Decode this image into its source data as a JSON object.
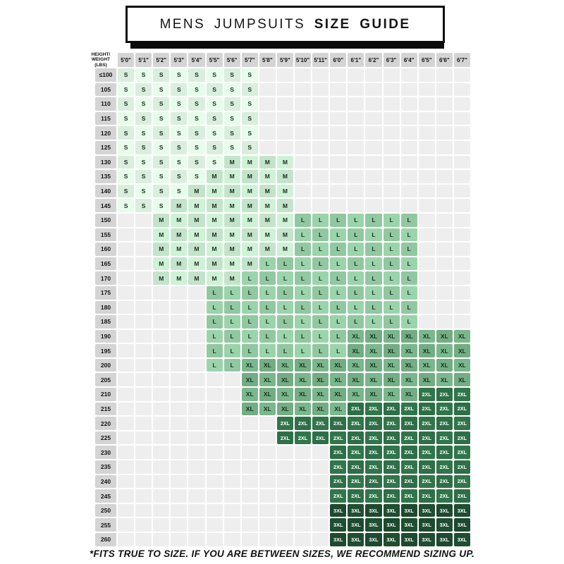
{
  "title": {
    "prefix": "MENS JUMPSUITS",
    "emphasis": "SIZE GUIDE"
  },
  "footer_note": "*FITS TRUE TO SIZE. IF YOU ARE BETWEEN SIZES, WE RECOMMEND SIZING UP.",
  "colors": {
    "label_bg": "#d4d4d4",
    "empty_bg": "#eeeeee",
    "title_border": "#0b0b0b",
    "sizes": {
      "S": {
        "bg": "#daeedd",
        "fg": "#1c2a20"
      },
      "M": {
        "bg": "#c3e4cb",
        "fg": "#1c2a20"
      },
      "L": {
        "bg": "#92c8a1",
        "fg": "#14301f"
      },
      "XL": {
        "bg": "#74ad84",
        "fg": "#11301d"
      },
      "2XL": {
        "bg": "#2e6f47",
        "fg": "#ffffff"
      },
      "3XL": {
        "bg": "#1d4a2e",
        "fg": "#ffffff"
      }
    }
  },
  "chart_data": {
    "type": "heatmap",
    "title": "MENS JUMPSUITS SIZE GUIDE",
    "x_axis": "Height",
    "y_axis": "Weight (lbs)",
    "corner_lines": [
      "HEIGHT/",
      "WEIGHT",
      "(LBS)"
    ],
    "x_labels": [
      "5'0\"",
      "5'1\"",
      "5'2\"",
      "5'3\"",
      "5'4\"",
      "5'5\"",
      "5'6\"",
      "5'7\"",
      "5'8\"",
      "5'9\"",
      "5'10\"",
      "5'11\"",
      "6'0\"",
      "6'1\"",
      "6'2\"",
      "6'3\"",
      "6'4\"",
      "6'5\"",
      "6'6\"",
      "6'7\""
    ],
    "y_labels": [
      "≤100",
      "105",
      "110",
      "115",
      "120",
      "125",
      "130",
      "135",
      "140",
      "145",
      "150",
      "155",
      "160",
      "165",
      "170",
      "175",
      "180",
      "185",
      "190",
      "195",
      "200",
      "205",
      "210",
      "215",
      "220",
      "225",
      "230",
      "235",
      "240",
      "245",
      "250",
      "255",
      "260"
    ],
    "rows": [
      {
        "weight": "≤100",
        "spans": [
          {
            "size": "S",
            "start": 0,
            "end": 7
          }
        ]
      },
      {
        "weight": "105",
        "spans": [
          {
            "size": "S",
            "start": 0,
            "end": 7
          }
        ]
      },
      {
        "weight": "110",
        "spans": [
          {
            "size": "S",
            "start": 0,
            "end": 7
          }
        ]
      },
      {
        "weight": "115",
        "spans": [
          {
            "size": "S",
            "start": 0,
            "end": 7
          }
        ]
      },
      {
        "weight": "120",
        "spans": [
          {
            "size": "S",
            "start": 0,
            "end": 7
          }
        ]
      },
      {
        "weight": "125",
        "spans": [
          {
            "size": "S",
            "start": 0,
            "end": 7
          }
        ]
      },
      {
        "weight": "130",
        "spans": [
          {
            "size": "S",
            "start": 0,
            "end": 5
          },
          {
            "size": "M",
            "start": 6,
            "end": 9
          }
        ]
      },
      {
        "weight": "135",
        "spans": [
          {
            "size": "S",
            "start": 0,
            "end": 4
          },
          {
            "size": "M",
            "start": 5,
            "end": 9
          }
        ]
      },
      {
        "weight": "140",
        "spans": [
          {
            "size": "S",
            "start": 0,
            "end": 3
          },
          {
            "size": "M",
            "start": 4,
            "end": 9
          }
        ]
      },
      {
        "weight": "145",
        "spans": [
          {
            "size": "S",
            "start": 0,
            "end": 2
          },
          {
            "size": "M",
            "start": 3,
            "end": 9
          }
        ]
      },
      {
        "weight": "150",
        "spans": [
          {
            "size": "M",
            "start": 2,
            "end": 9
          },
          {
            "size": "L",
            "start": 10,
            "end": 16
          }
        ]
      },
      {
        "weight": "155",
        "spans": [
          {
            "size": "M",
            "start": 2,
            "end": 9
          },
          {
            "size": "L",
            "start": 10,
            "end": 16
          }
        ]
      },
      {
        "weight": "160",
        "spans": [
          {
            "size": "M",
            "start": 2,
            "end": 9
          },
          {
            "size": "L",
            "start": 10,
            "end": 16
          }
        ]
      },
      {
        "weight": "165",
        "spans": [
          {
            "size": "M",
            "start": 2,
            "end": 7
          },
          {
            "size": "L",
            "start": 8,
            "end": 16
          }
        ]
      },
      {
        "weight": "170",
        "spans": [
          {
            "size": "M",
            "start": 2,
            "end": 6
          },
          {
            "size": "L",
            "start": 7,
            "end": 16
          }
        ]
      },
      {
        "weight": "175",
        "spans": [
          {
            "size": "L",
            "start": 5,
            "end": 16
          }
        ]
      },
      {
        "weight": "180",
        "spans": [
          {
            "size": "L",
            "start": 5,
            "end": 16
          }
        ]
      },
      {
        "weight": "185",
        "spans": [
          {
            "size": "L",
            "start": 5,
            "end": 16
          }
        ]
      },
      {
        "weight": "190",
        "spans": [
          {
            "size": "L",
            "start": 5,
            "end": 12
          },
          {
            "size": "XL",
            "start": 13,
            "end": 19
          }
        ]
      },
      {
        "weight": "195",
        "spans": [
          {
            "size": "L",
            "start": 5,
            "end": 12
          },
          {
            "size": "XL",
            "start": 13,
            "end": 19
          }
        ]
      },
      {
        "weight": "200",
        "spans": [
          {
            "size": "L",
            "start": 5,
            "end": 6
          },
          {
            "size": "XL",
            "start": 7,
            "end": 19
          }
        ]
      },
      {
        "weight": "205",
        "spans": [
          {
            "size": "XL",
            "start": 7,
            "end": 19
          }
        ]
      },
      {
        "weight": "210",
        "spans": [
          {
            "size": "XL",
            "start": 7,
            "end": 16
          },
          {
            "size": "2XL",
            "start": 17,
            "end": 19
          }
        ]
      },
      {
        "weight": "215",
        "spans": [
          {
            "size": "XL",
            "start": 7,
            "end": 12
          },
          {
            "size": "2XL",
            "start": 13,
            "end": 19
          }
        ]
      },
      {
        "weight": "220",
        "spans": [
          {
            "size": "2XL",
            "start": 9,
            "end": 19
          }
        ]
      },
      {
        "weight": "225",
        "spans": [
          {
            "size": "2XL",
            "start": 9,
            "end": 19
          }
        ]
      },
      {
        "weight": "230",
        "spans": [
          {
            "size": "2XL",
            "start": 12,
            "end": 19
          }
        ]
      },
      {
        "weight": "235",
        "spans": [
          {
            "size": "2XL",
            "start": 12,
            "end": 19
          }
        ]
      },
      {
        "weight": "240",
        "spans": [
          {
            "size": "2XL",
            "start": 12,
            "end": 19
          }
        ]
      },
      {
        "weight": "245",
        "spans": [
          {
            "size": "2XL",
            "start": 12,
            "end": 19
          }
        ]
      },
      {
        "weight": "250",
        "spans": [
          {
            "size": "3XL",
            "start": 12,
            "end": 19
          }
        ]
      },
      {
        "weight": "255",
        "spans": [
          {
            "size": "3XL",
            "start": 12,
            "end": 19
          }
        ]
      },
      {
        "weight": "260",
        "spans": [
          {
            "size": "3XL",
            "start": 12,
            "end": 19
          }
        ]
      }
    ]
  }
}
